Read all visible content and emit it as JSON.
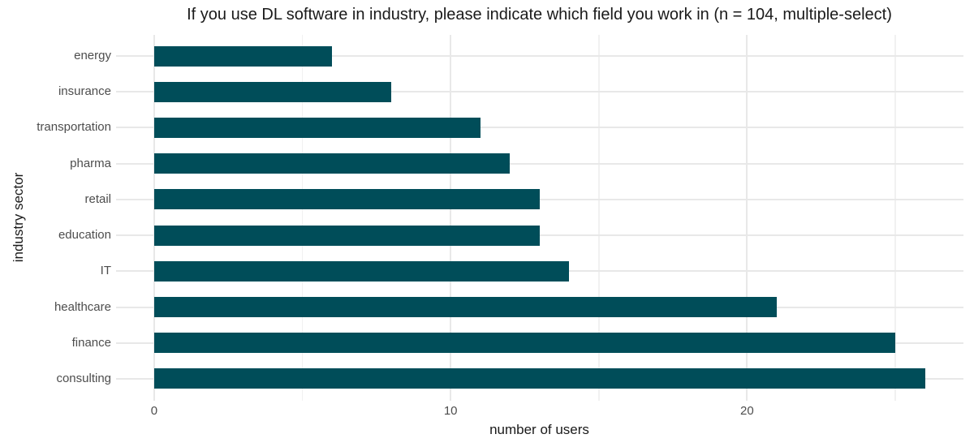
{
  "chart_data": {
    "type": "bar",
    "orientation": "horizontal",
    "title": "If you use DL software in industry, please indicate which field you work in (n = 104, multiple-select)",
    "xlabel": "number of users",
    "ylabel": "industry sector",
    "n_respondents": 104,
    "categories_top_to_bottom": [
      "energy",
      "insurance",
      "transportation",
      "pharma",
      "retail",
      "education",
      "IT",
      "healthcare",
      "finance",
      "consulting"
    ],
    "values": [
      6,
      8,
      11,
      12,
      13,
      13,
      14,
      21,
      25,
      26
    ],
    "x_ticks_major": [
      0,
      10,
      20
    ],
    "x_ticks_minor": [
      5,
      15,
      25
    ],
    "xlim": [
      -1.3,
      27.3
    ],
    "grid": "major and minor vertical, major horizontal per category",
    "legend": "none"
  },
  "style": {
    "bar_color": "#004d59",
    "grid_major_color": "#e8e8e8",
    "grid_minor_color": "#f1f1f1",
    "tick_label_color": "#4d4d4d",
    "text_color": "#1a1a1a",
    "background": "#ffffff"
  }
}
